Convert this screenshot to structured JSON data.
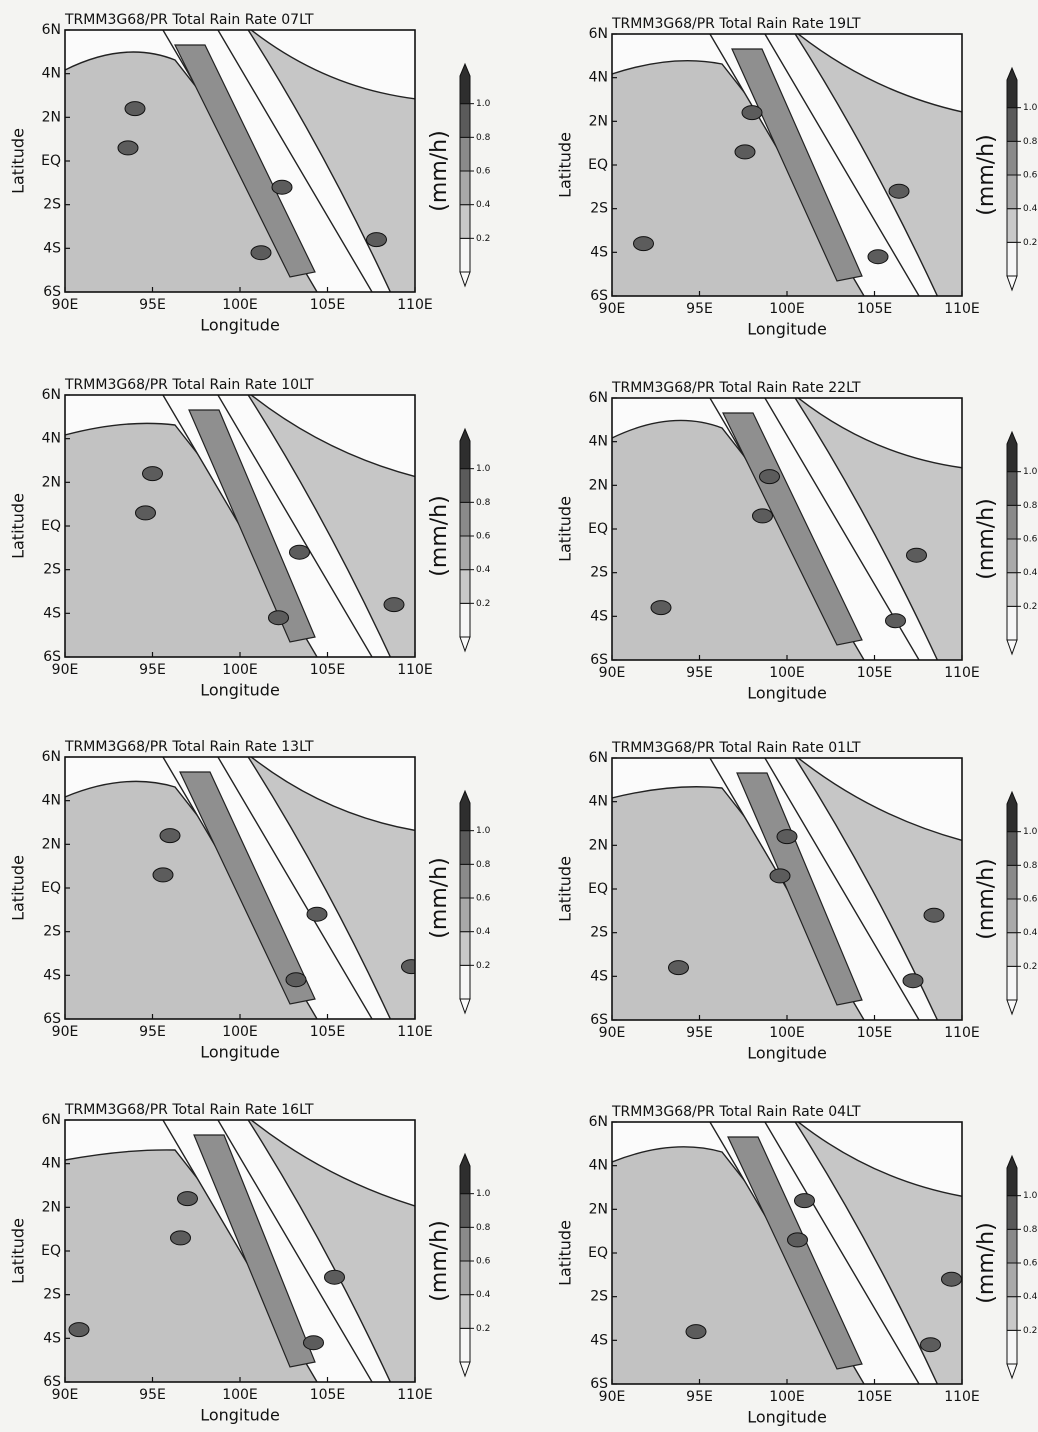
{
  "chart_data": [
    {
      "type": "contour",
      "title": "TRMM3G68/PR Total Rain Rate 07LT",
      "xlabel": "Longitude",
      "ylabel": "Latitude",
      "xlim": [
        90,
        110
      ],
      "xticks": [
        {
          "value": 90,
          "label": "90E"
        },
        {
          "value": 95,
          "label": "95E"
        },
        {
          "value": 100,
          "label": "100E"
        },
        {
          "value": 105,
          "label": "105E"
        },
        {
          "value": 110,
          "label": "110E"
        }
      ],
      "ylim": [
        -6,
        6
      ],
      "yticks": [
        {
          "value": -6,
          "label": "6S"
        },
        {
          "value": -4,
          "label": "4S"
        },
        {
          "value": -2,
          "label": "2S"
        },
        {
          "value": 0,
          "label": "EQ"
        },
        {
          "value": 2,
          "label": "2N"
        },
        {
          "value": 4,
          "label": "4N"
        },
        {
          "value": 6,
          "label": "6N"
        }
      ],
      "colorbar_label": "(mm/h)",
      "colorbar_ticks": [
        0.2,
        0.4,
        0.6,
        0.8,
        {
          "value": 1,
          "label": "1.0"
        }
      ]
    },
    {
      "type": "contour",
      "title": "TRMM3G68/PR Total Rain Rate 10LT",
      "xlabel": "Longitude",
      "ylabel": "Latitude",
      "xlim": [
        90,
        110
      ],
      "xticks": [
        {
          "value": 90,
          "label": "90E"
        },
        {
          "value": 95,
          "label": "95E"
        },
        {
          "value": 100,
          "label": "100E"
        },
        {
          "value": 105,
          "label": "105E"
        },
        {
          "value": 110,
          "label": "110E"
        }
      ],
      "ylim": [
        -6,
        6
      ],
      "yticks": [
        {
          "value": -6,
          "label": "6S"
        },
        {
          "value": -4,
          "label": "4S"
        },
        {
          "value": -2,
          "label": "2S"
        },
        {
          "value": 0,
          "label": "EQ"
        },
        {
          "value": 2,
          "label": "2N"
        },
        {
          "value": 4,
          "label": "4N"
        },
        {
          "value": 6,
          "label": "6N"
        }
      ],
      "colorbar_label": "(mm/h)",
      "colorbar_ticks": [
        0.2,
        0.4,
        0.6,
        0.8,
        {
          "value": 1,
          "label": "1.0"
        }
      ]
    },
    {
      "type": "contour",
      "title": "TRMM3G68/PR Total Rain Rate 13LT",
      "xlabel": "Longitude",
      "ylabel": "Latitude",
      "xlim": [
        90,
        110
      ],
      "xticks": [
        {
          "value": 90,
          "label": "90E"
        },
        {
          "value": 95,
          "label": "95E"
        },
        {
          "value": 100,
          "label": "100E"
        },
        {
          "value": 105,
          "label": "105E"
        },
        {
          "value": 110,
          "label": "110E"
        }
      ],
      "ylim": [
        -6,
        6
      ],
      "yticks": [
        {
          "value": -6,
          "label": "6S"
        },
        {
          "value": -4,
          "label": "4S"
        },
        {
          "value": -2,
          "label": "2S"
        },
        {
          "value": 0,
          "label": "EQ"
        },
        {
          "value": 2,
          "label": "2N"
        },
        {
          "value": 4,
          "label": "4N"
        },
        {
          "value": 6,
          "label": "6N"
        }
      ],
      "colorbar_label": "(mm/h)",
      "colorbar_ticks": [
        0.2,
        0.4,
        0.6,
        0.8,
        {
          "value": 1,
          "label": "1.0"
        }
      ]
    },
    {
      "type": "contour",
      "title": "TRMM3G68/PR Total Rain Rate 16LT",
      "xlabel": "Longitude",
      "ylabel": "Latitude",
      "xlim": [
        90,
        110
      ],
      "xticks": [
        {
          "value": 90,
          "label": "90E"
        },
        {
          "value": 95,
          "label": "95E"
        },
        {
          "value": 100,
          "label": "100E"
        },
        {
          "value": 105,
          "label": "105E"
        },
        {
          "value": 110,
          "label": "110E"
        }
      ],
      "ylim": [
        -6,
        6
      ],
      "yticks": [
        {
          "value": -6,
          "label": "6S"
        },
        {
          "value": -4,
          "label": "4S"
        },
        {
          "value": -2,
          "label": "2S"
        },
        {
          "value": 0,
          "label": "EQ"
        },
        {
          "value": 2,
          "label": "2N"
        },
        {
          "value": 4,
          "label": "4N"
        },
        {
          "value": 6,
          "label": "6N"
        }
      ],
      "colorbar_label": "(mm/h)",
      "colorbar_ticks": [
        0.2,
        0.4,
        0.6,
        0.8,
        {
          "value": 1,
          "label": "1.0"
        }
      ]
    },
    {
      "type": "contour",
      "title": "TRMM3G68/PR Total Rain Rate 19LT",
      "xlabel": "Longitude",
      "ylabel": "Latitude",
      "xlim": [
        90,
        110
      ],
      "xticks": [
        {
          "value": 90,
          "label": "90E"
        },
        {
          "value": 95,
          "label": "95E"
        },
        {
          "value": 100,
          "label": "100E"
        },
        {
          "value": 105,
          "label": "105E"
        },
        {
          "value": 110,
          "label": "110E"
        }
      ],
      "ylim": [
        -6,
        6
      ],
      "yticks": [
        {
          "value": -6,
          "label": "6S"
        },
        {
          "value": -4,
          "label": "4S"
        },
        {
          "value": -2,
          "label": "2S"
        },
        {
          "value": 0,
          "label": "EQ"
        },
        {
          "value": 2,
          "label": "2N"
        },
        {
          "value": 4,
          "label": "4N"
        },
        {
          "value": 6,
          "label": "6N"
        }
      ],
      "colorbar_label": "(mm/h)",
      "colorbar_ticks": [
        0.2,
        0.4,
        0.6,
        0.8,
        {
          "value": 1,
          "label": "1.0"
        }
      ]
    },
    {
      "type": "contour",
      "title": "TRMM3G68/PR Total Rain Rate 22LT",
      "xlabel": "Longitude",
      "ylabel": "Latitude",
      "xlim": [
        90,
        110
      ],
      "xticks": [
        {
          "value": 90,
          "label": "90E"
        },
        {
          "value": 95,
          "label": "95E"
        },
        {
          "value": 100,
          "label": "100E"
        },
        {
          "value": 105,
          "label": "105E"
        },
        {
          "value": 110,
          "label": "110E"
        }
      ],
      "ylim": [
        -6,
        6
      ],
      "yticks": [
        {
          "value": -6,
          "label": "6S"
        },
        {
          "value": -4,
          "label": "4S"
        },
        {
          "value": -2,
          "label": "2S"
        },
        {
          "value": 0,
          "label": "EQ"
        },
        {
          "value": 2,
          "label": "2N"
        },
        {
          "value": 4,
          "label": "4N"
        },
        {
          "value": 6,
          "label": "6N"
        }
      ],
      "colorbar_label": "(mm/h)",
      "colorbar_ticks": [
        0.2,
        0.4,
        0.6,
        0.8,
        {
          "value": 1,
          "label": "1.0"
        }
      ]
    },
    {
      "type": "contour",
      "title": "TRMM3G68/PR Total Rain Rate 01LT",
      "xlabel": "Longitude",
      "ylabel": "Latitude",
      "xlim": [
        90,
        110
      ],
      "xticks": [
        {
          "value": 90,
          "label": "90E"
        },
        {
          "value": 95,
          "label": "95E"
        },
        {
          "value": 100,
          "label": "100E"
        },
        {
          "value": 105,
          "label": "105E"
        },
        {
          "value": 110,
          "label": "110E"
        }
      ],
      "ylim": [
        -6,
        6
      ],
      "yticks": [
        {
          "value": -6,
          "label": "6S"
        },
        {
          "value": -4,
          "label": "4S"
        },
        {
          "value": -2,
          "label": "2S"
        },
        {
          "value": 0,
          "label": "EQ"
        },
        {
          "value": 2,
          "label": "2N"
        },
        {
          "value": 4,
          "label": "4N"
        },
        {
          "value": 6,
          "label": "6N"
        }
      ],
      "colorbar_label": "(mm/h)",
      "colorbar_ticks": [
        0.2,
        0.4,
        0.6,
        0.8,
        {
          "value": 1,
          "label": "1.0"
        }
      ]
    },
    {
      "type": "contour",
      "title": "TRMM3G68/PR Total Rain Rate 04LT",
      "xlabel": "Longitude",
      "ylabel": "Latitude",
      "xlim": [
        90,
        110
      ],
      "xticks": [
        {
          "value": 90,
          "label": "90E"
        },
        {
          "value": 95,
          "label": "95E"
        },
        {
          "value": 100,
          "label": "100E"
        },
        {
          "value": 105,
          "label": "105E"
        },
        {
          "value": 110,
          "label": "110E"
        }
      ],
      "ylim": [
        -6,
        6
      ],
      "yticks": [
        {
          "value": -6,
          "label": "6S"
        },
        {
          "value": -4,
          "label": "4S"
        },
        {
          "value": -2,
          "label": "2S"
        },
        {
          "value": 0,
          "label": "EQ"
        },
        {
          "value": 2,
          "label": "2N"
        },
        {
          "value": 4,
          "label": "4N"
        },
        {
          "value": 6,
          "label": "6N"
        }
      ],
      "colorbar_label": "(mm/h)",
      "colorbar_ticks": [
        0.2,
        0.4,
        0.6,
        0.8,
        {
          "value": 1,
          "label": "1.0"
        }
      ]
    }
  ]
}
